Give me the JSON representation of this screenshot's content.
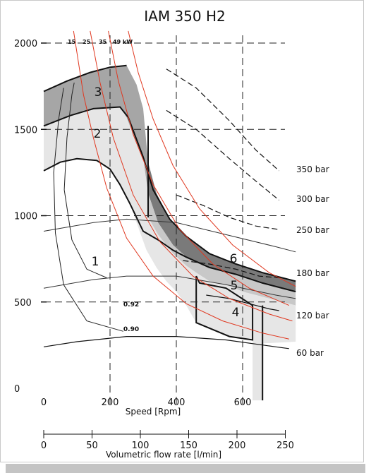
{
  "chart_data": {
    "type": "line",
    "title": "IAM 350 H2",
    "x_axis": {
      "label": "Speed [Rpm]",
      "ticks": [
        0,
        200,
        400,
        600
      ],
      "range": [
        0,
        760
      ]
    },
    "x2_axis": {
      "label": "Volumetric flow rate [l/min]",
      "ticks": [
        0,
        50,
        100,
        150,
        200,
        250
      ],
      "range": [
        0,
        275
      ]
    },
    "y_axis": {
      "ticks": [
        0,
        500,
        1000,
        1500,
        2000
      ],
      "range": [
        -130,
        2180
      ]
    },
    "grid": true,
    "pressure_curves": [
      {
        "name": "350 bar",
        "points": [
          [
            370,
            1850
          ],
          [
            460,
            1740
          ],
          [
            560,
            1550
          ],
          [
            640,
            1380
          ],
          [
            710,
            1260
          ]
        ]
      },
      {
        "name": "300 bar",
        "points": [
          [
            370,
            1610
          ],
          [
            460,
            1500
          ],
          [
            560,
            1330
          ],
          [
            640,
            1200
          ],
          [
            710,
            1090
          ]
        ]
      },
      {
        "name": "250 bar",
        "points": [
          [
            400,
            1120
          ],
          [
            480,
            1060
          ],
          [
            560,
            990
          ],
          [
            640,
            940
          ],
          [
            710,
            920
          ]
        ]
      },
      {
        "name": "180 bar",
        "points": [
          [
            420,
            740
          ],
          [
            500,
            720
          ],
          [
            580,
            690
          ],
          [
            650,
            650
          ],
          [
            710,
            640
          ]
        ]
      },
      {
        "name": "120 bar",
        "points": [
          [
            490,
            540
          ],
          [
            560,
            520
          ],
          [
            620,
            490
          ],
          [
            680,
            460
          ],
          [
            710,
            450
          ]
        ]
      },
      {
        "name": "60 bar",
        "points": [
          [
            0,
            240
          ],
          [
            100,
            270
          ],
          [
            250,
            300
          ],
          [
            400,
            300
          ],
          [
            550,
            280
          ],
          [
            700,
            240
          ],
          [
            740,
            230
          ]
        ]
      }
    ],
    "torque_curves": [
      {
        "points": [
          [
            0,
            910
          ],
          [
            150,
            960
          ],
          [
            250,
            980
          ],
          [
            400,
            960
          ],
          [
            550,
            890
          ],
          [
            700,
            820
          ],
          [
            760,
            790
          ]
        ]
      },
      {
        "points": [
          [
            0,
            580
          ],
          [
            150,
            630
          ],
          [
            250,
            650
          ],
          [
            400,
            650
          ],
          [
            550,
            600
          ],
          [
            700,
            540
          ],
          [
            760,
            520
          ]
        ]
      }
    ],
    "power_curves": [
      {
        "name": "15",
        "points": [
          [
            90,
            2070
          ],
          [
            120,
            1700
          ],
          [
            150,
            1450
          ],
          [
            190,
            1160
          ],
          [
            250,
            870
          ],
          [
            330,
            650
          ],
          [
            430,
            490
          ],
          [
            540,
            390
          ],
          [
            660,
            320
          ],
          [
            740,
            285
          ]
        ]
      },
      {
        "name": "25",
        "points": [
          [
            140,
            2070
          ],
          [
            170,
            1770
          ],
          [
            210,
            1450
          ],
          [
            270,
            1120
          ],
          [
            350,
            850
          ],
          [
            450,
            650
          ],
          [
            560,
            520
          ],
          [
            680,
            430
          ],
          [
            750,
            390
          ]
        ]
      },
      {
        "name": "35",
        "points": [
          [
            195,
            2070
          ],
          [
            225,
            1780
          ],
          [
            270,
            1470
          ],
          [
            330,
            1180
          ],
          [
            410,
            920
          ],
          [
            510,
            720
          ],
          [
            620,
            580
          ],
          [
            740,
            480
          ]
        ]
      },
      {
        "name": "49 kW",
        "points": [
          [
            255,
            2070
          ],
          [
            285,
            1830
          ],
          [
            330,
            1560
          ],
          [
            390,
            1290
          ],
          [
            470,
            1040
          ],
          [
            570,
            830
          ],
          [
            680,
            670
          ],
          [
            760,
            590
          ]
        ]
      }
    ],
    "efficiency_curves": [
      {
        "name": "0.92",
        "points": [
          [
            190,
            640
          ],
          [
            130,
            690
          ],
          [
            85,
            860
          ],
          [
            62,
            1150
          ],
          [
            70,
            1450
          ],
          [
            85,
            1700
          ],
          [
            92,
            1770
          ]
        ]
      },
      {
        "name": "0.90",
        "points": [
          [
            240,
            330
          ],
          [
            130,
            390
          ],
          [
            60,
            600
          ],
          [
            35,
            900
          ],
          [
            30,
            1250
          ],
          [
            45,
            1560
          ],
          [
            60,
            1740
          ]
        ]
      }
    ],
    "zones": [
      {
        "label": "1"
      },
      {
        "label": "2"
      },
      {
        "label": "3"
      },
      {
        "label": "4"
      },
      {
        "label": "5"
      },
      {
        "label": "6"
      }
    ]
  }
}
